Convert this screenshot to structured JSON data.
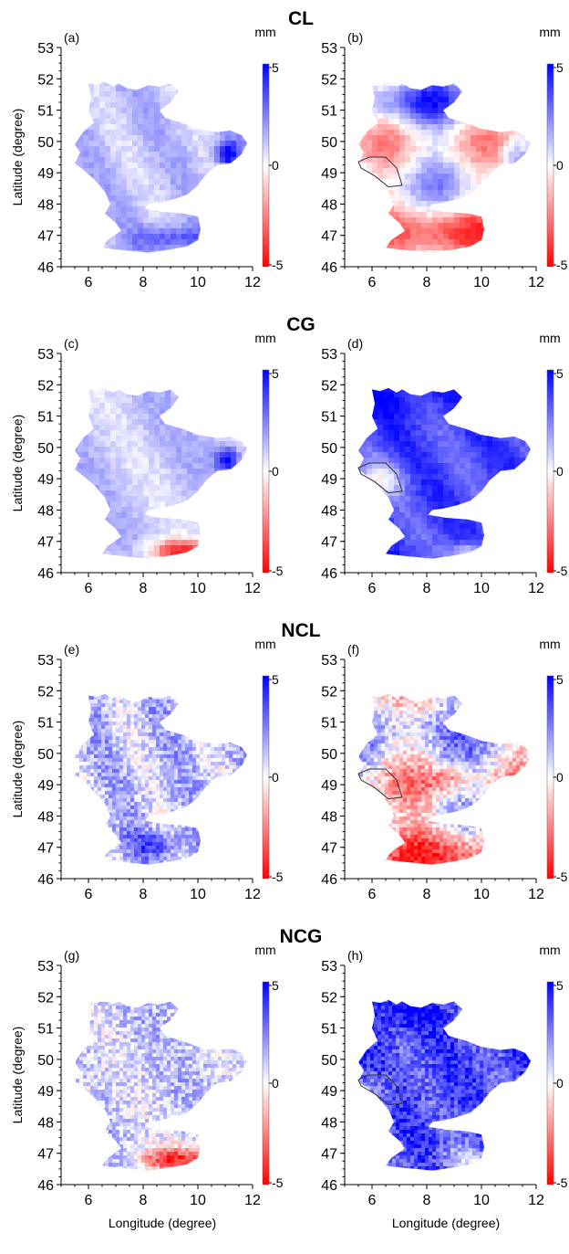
{
  "chart_data": [
    {
      "type": "heatmap",
      "row_title": "CL",
      "panels": [
        {
          "label": "(a)",
          "pattern": "mild_blue_hotspot",
          "outline": false
        },
        {
          "label": "(b)",
          "pattern": "mixed_red_south",
          "outline": true
        }
      ]
    },
    {
      "type": "heatmap",
      "row_title": "CG",
      "panels": [
        {
          "label": "(c)",
          "pattern": "mild_blue_red_south",
          "outline": false
        },
        {
          "label": "(d)",
          "pattern": "strong_blue",
          "outline": true
        }
      ]
    },
    {
      "type": "heatmap",
      "row_title": "NCL",
      "panels": [
        {
          "label": "(e)",
          "pattern": "noisy_mild_blue",
          "outline": false
        },
        {
          "label": "(f)",
          "pattern": "noisy_mixed_red_south",
          "outline": true
        }
      ]
    },
    {
      "type": "heatmap",
      "row_title": "NCG",
      "panels": [
        {
          "label": "(g)",
          "pattern": "noisy_mild_blue_red_south",
          "outline": false
        },
        {
          "label": "(h)",
          "pattern": "noisy_strong_blue",
          "outline": true
        }
      ]
    }
  ],
  "axes": {
    "xlabel": "Longitude (degree)",
    "ylabel": "Latitude (degree)",
    "xlim": [
      5,
      12
    ],
    "ylim": [
      46,
      53
    ],
    "x_ticks": [
      6,
      8,
      10,
      12
    ],
    "y_ticks": [
      46,
      47,
      48,
      49,
      50,
      51,
      52,
      53
    ]
  },
  "colorbar": {
    "unit": "mm",
    "min": -5,
    "max": 5,
    "ticks": [
      "5",
      "0",
      "-5"
    ],
    "colors": {
      "high": "#0000ff",
      "mid": "#ffffff",
      "low": "#ff0000"
    }
  }
}
